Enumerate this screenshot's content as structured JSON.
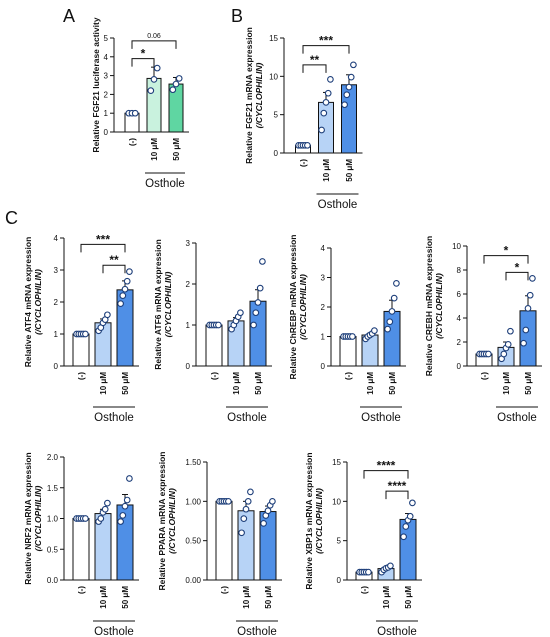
{
  "figure": {
    "panel_labels": [
      "A",
      "B",
      "C"
    ],
    "group_label": "Osthole",
    "x_labels": [
      "(-)",
      "10 μM",
      "50 μM"
    ]
  },
  "colors": {
    "control": "#ffffff",
    "light_green": "#c9f2de",
    "green": "#5fd6a2",
    "light_blue": "#b7d3f6",
    "blue": "#4f8fe6",
    "axis": "#111111"
  },
  "chart_data": [
    {
      "id": "A",
      "type": "bar",
      "ylabel": "Relative FGF21 luciferase activity",
      "ylim": [
        0,
        5
      ],
      "yticks": [
        0,
        1,
        2,
        3,
        4,
        5
      ],
      "categories": [
        "(-)",
        "10 μM",
        "50 μM"
      ],
      "values": [
        1.0,
        2.85,
        2.55
      ],
      "errors": [
        0.02,
        0.6,
        0.35
      ],
      "points": [
        [
          1.0,
          1.0,
          1.0
        ],
        [
          2.2,
          2.8,
          3.4
        ],
        [
          2.25,
          2.55,
          2.85
        ]
      ],
      "fills": [
        "#ffffff",
        "#c9f2de",
        "#5fd6a2"
      ],
      "brackets": [
        {
          "from": 0,
          "to": 1,
          "label": "*",
          "y": 3.9
        },
        {
          "from": 0,
          "to": 2,
          "label": "0.06",
          "y": 4.85
        }
      ]
    },
    {
      "id": "B",
      "type": "bar",
      "ylabel": "Relative FGF21 mRNA expression",
      "ylabel2": "(/CYCLOPHILIN)",
      "ylim": [
        0,
        15
      ],
      "yticks": [
        0,
        5,
        10,
        15
      ],
      "categories": [
        "(-)",
        "10 μM",
        "50 μM"
      ],
      "values": [
        1.0,
        6.6,
        8.9
      ],
      "errors": [
        0.05,
        1.3,
        1.3
      ],
      "points": [
        [
          1.0,
          1.0,
          1.0,
          1.0,
          1.0
        ],
        [
          3.0,
          5.2,
          6.6,
          7.8,
          9.6
        ],
        [
          6.3,
          7.6,
          8.6,
          9.9,
          11.5
        ]
      ],
      "fills": [
        "#ffffff",
        "#b7d3f6",
        "#4f8fe6"
      ],
      "brackets": [
        {
          "from": 0,
          "to": 1,
          "label": "**",
          "y": 11.5
        },
        {
          "from": 0,
          "to": 2,
          "label": "***",
          "y": 14.0
        }
      ]
    },
    {
      "id": "C-ATF4",
      "type": "bar",
      "ylabel": "Relative ATF4 mRNA expression",
      "ylabel2": "(/CYCLOPHILIN)",
      "ylim": [
        0,
        4
      ],
      "yticks": [
        0,
        1,
        2,
        3,
        4
      ],
      "categories": [
        "(-)",
        "10 μM",
        "50 μM"
      ],
      "values": [
        1.0,
        1.35,
        2.38
      ],
      "errors": [
        0.02,
        0.12,
        0.28
      ],
      "points": [
        [
          1.0,
          1.0,
          1.0,
          1.0,
          1.0
        ],
        [
          1.1,
          1.2,
          1.35,
          1.45,
          1.6
        ],
        [
          1.95,
          2.2,
          2.4,
          2.65,
          2.95
        ]
      ],
      "fills": [
        "#ffffff",
        "#b7d3f6",
        "#4f8fe6"
      ],
      "brackets": [
        {
          "from": 1,
          "to": 2,
          "label": "**",
          "y": 3.15
        },
        {
          "from": 0,
          "to": 2,
          "label": "***",
          "y": 3.8
        }
      ]
    },
    {
      "id": "C-ATF6",
      "type": "bar",
      "ylabel": "Relative ATF6 mRNA expression",
      "ylabel2": "(/CYCLOPHILIN)",
      "ylim": [
        0,
        3
      ],
      "yticks": [
        0,
        1,
        2,
        3
      ],
      "categories": [
        "(-)",
        "10 μM",
        "50 μM"
      ],
      "values": [
        1.0,
        1.1,
        1.58
      ],
      "errors": [
        0.02,
        0.08,
        0.28
      ],
      "points": [
        [
          1.0,
          1.0,
          1.0,
          1.0,
          1.0
        ],
        [
          0.9,
          1.0,
          1.1,
          1.2,
          1.3
        ],
        [
          1.0,
          1.3,
          1.55,
          1.9,
          2.55
        ]
      ],
      "fills": [
        "#ffffff",
        "#b7d3f6",
        "#4f8fe6"
      ],
      "brackets": []
    },
    {
      "id": "C-ChREBP",
      "type": "bar",
      "ylabel": "Relative ChREBP mRNA expression",
      "ylabel2": "(/CYCLOPHILIN)",
      "ylim": [
        0,
        4
      ],
      "yticks": [
        0,
        1,
        2,
        3,
        4
      ],
      "categories": [
        "(-)",
        "10 μM",
        "50 μM"
      ],
      "values": [
        1.0,
        1.05,
        1.85
      ],
      "errors": [
        0.02,
        0.06,
        0.38
      ],
      "points": [
        [
          1.0,
          1.0,
          1.0,
          1.0,
          1.0
        ],
        [
          0.92,
          1.0,
          1.05,
          1.1,
          1.2
        ],
        [
          1.25,
          1.5,
          1.85,
          2.3,
          2.8
        ]
      ],
      "fills": [
        "#ffffff",
        "#b7d3f6",
        "#4f8fe6"
      ],
      "brackets": []
    },
    {
      "id": "C-CREBH",
      "type": "bar",
      "ylabel": "Relative CREBH mRNA expression",
      "ylabel2": "(/CYCLOPHILIN)",
      "ylim": [
        0,
        10
      ],
      "yticks": [
        0,
        2,
        4,
        6,
        8,
        10
      ],
      "categories": [
        "(-)",
        "10 μM",
        "50 μM"
      ],
      "values": [
        1.0,
        1.55,
        4.6
      ],
      "errors": [
        0.03,
        0.45,
        1.25
      ],
      "points": [
        [
          1.0,
          1.0,
          1.0,
          1.0,
          1.0
        ],
        [
          0.6,
          1.0,
          1.5,
          1.8,
          2.9
        ],
        [
          1.9,
          3.0,
          4.8,
          5.9,
          7.3
        ]
      ],
      "fills": [
        "#ffffff",
        "#b7d3f6",
        "#4f8fe6"
      ],
      "brackets": [
        {
          "from": 1,
          "to": 2,
          "label": "*",
          "y": 7.8
        },
        {
          "from": 0,
          "to": 2,
          "label": "*",
          "y": 9.2
        }
      ]
    },
    {
      "id": "C-NRF2",
      "type": "bar",
      "ylabel": "Relative NRF2 mRNA expression",
      "ylabel2": "(/CYCLOPHILIN)",
      "ylim": [
        0,
        2.0
      ],
      "yticks": [
        0.0,
        0.5,
        1.0,
        1.5,
        2.0
      ],
      "yticklabels": [
        "0.0",
        "0.5",
        "1.0",
        "1.5",
        "2.0"
      ],
      "categories": [
        "(-)",
        "10 μM",
        "50 μM"
      ],
      "values": [
        1.0,
        1.08,
        1.22
      ],
      "errors": [
        0.01,
        0.07,
        0.17
      ],
      "points": [
        [
          1.0,
          1.0,
          1.0,
          1.0,
          1.0
        ],
        [
          0.95,
          1.0,
          1.1,
          1.15,
          1.25
        ],
        [
          0.95,
          1.05,
          1.2,
          1.3,
          1.65
        ]
      ],
      "fills": [
        "#ffffff",
        "#b7d3f6",
        "#4f8fe6"
      ],
      "brackets": []
    },
    {
      "id": "C-PPARA",
      "type": "bar",
      "ylabel": "Relative PPARA mRNA expression",
      "ylabel2": "(/CYCLOPHILIN)",
      "ylim": [
        0,
        1.5
      ],
      "yticks": [
        0.0,
        0.5,
        1.0,
        1.5
      ],
      "yticklabels": [
        "0.00",
        "0.50",
        "1.00",
        "1.50"
      ],
      "categories": [
        "(-)",
        "10 μM",
        "50 μM"
      ],
      "values": [
        1.0,
        0.88,
        0.87
      ],
      "errors": [
        0.01,
        0.12,
        0.07
      ],
      "points": [
        [
          1.0,
          1.0,
          1.0,
          1.0,
          1.0
        ],
        [
          0.6,
          0.78,
          0.9,
          1.0,
          1.12
        ],
        [
          0.72,
          0.82,
          0.88,
          0.95,
          1.0
        ]
      ],
      "fills": [
        "#ffffff",
        "#b7d3f6",
        "#4f8fe6"
      ],
      "brackets": []
    },
    {
      "id": "C-XBP1s",
      "type": "bar",
      "ylabel": "Relative XBP1s mRNA expression",
      "ylabel2": "(/CYCLOPHILIN)",
      "ylim": [
        0,
        15
      ],
      "yticks": [
        0,
        5,
        10,
        15
      ],
      "categories": [
        "(-)",
        "10 μM",
        "50 μM"
      ],
      "values": [
        1.0,
        1.45,
        7.7
      ],
      "errors": [
        0.02,
        0.2,
        0.75
      ],
      "points": [
        [
          1.0,
          1.0,
          1.0,
          1.0,
          1.0
        ],
        [
          1.0,
          1.3,
          1.5,
          1.6,
          1.8
        ],
        [
          5.5,
          6.8,
          7.6,
          8.1,
          9.8
        ]
      ],
      "fills": [
        "#ffffff",
        "#b7d3f6",
        "#4f8fe6"
      ],
      "brackets": [
        {
          "from": 1,
          "to": 2,
          "label": "****",
          "y": 11.3
        },
        {
          "from": 0,
          "to": 2,
          "label": "****",
          "y": 13.9
        }
      ]
    }
  ]
}
